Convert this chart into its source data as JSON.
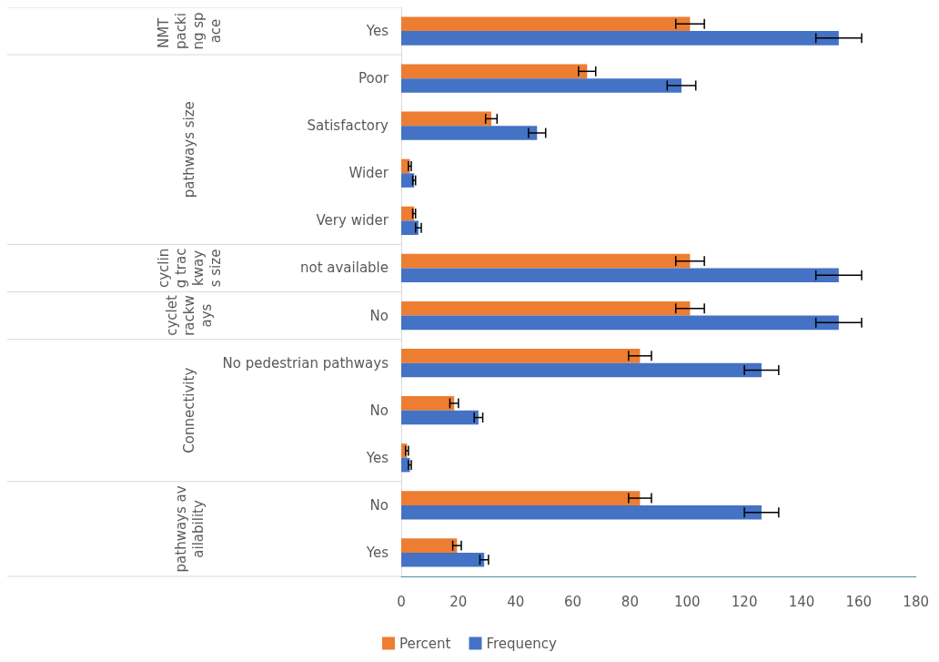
{
  "chart_data": {
    "type": "bar",
    "orientation": "horizontal",
    "categories": [
      "Yes",
      "Poor",
      "Satisfactory",
      "Wider",
      "Very wider",
      "not available",
      "No",
      "No pedestrian pathways",
      "No",
      "Yes",
      "No",
      "Yes"
    ],
    "series": [
      {
        "name": "Percent",
        "color": "#ed7d31",
        "values": [
          101,
          65,
          31.5,
          3,
          4.5,
          101,
          101,
          83.5,
          18.5,
          2,
          83.5,
          19.5
        ],
        "errors": [
          5,
          3,
          2,
          0.5,
          0.5,
          5,
          5,
          4,
          1.5,
          0.5,
          4,
          1.5
        ]
      },
      {
        "name": "Frequency",
        "color": "#4472c4",
        "values": [
          153,
          98,
          47.5,
          4.5,
          6,
          153,
          153,
          126,
          27,
          3,
          126,
          29
        ],
        "errors": [
          8,
          5,
          3,
          0.5,
          1,
          8,
          8,
          6,
          1.5,
          0.5,
          6,
          1.5
        ]
      }
    ],
    "annotations": [
      "NMT packing space",
      "pathways size",
      "cycling trackways size",
      "cycletrackways",
      "Connectivity",
      "pathways availability"
    ],
    "xlim": [
      0,
      180
    ],
    "xticks": [
      0,
      20,
      40,
      60,
      80,
      100,
      120,
      140,
      160,
      180
    ],
    "grid": false,
    "legend": "bottom"
  }
}
